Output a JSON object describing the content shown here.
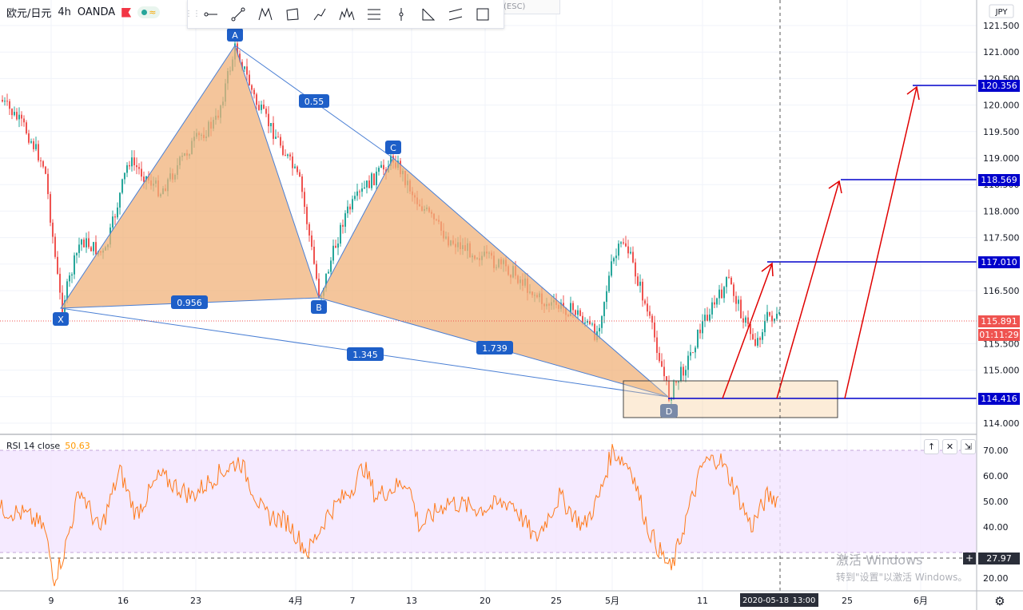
{
  "symbol": {
    "name": "欧元/日元",
    "interval": "4h",
    "source": "OANDA"
  },
  "toolbar": {
    "esc_hint": "(ESC)",
    "icons": [
      "horizontal-ray-icon",
      "trend-line-icon",
      "xabcd-pattern-icon",
      "rectangle-icon",
      "path-icon",
      "elliott-wave-icon",
      "fib-retracement-icon",
      "vertical-line-icon",
      "triangle-pattern-icon",
      "parallel-channel-icon",
      "polygon-icon"
    ]
  },
  "price_axis": {
    "currency": "JPY",
    "ticks": [
      "121.500",
      "121.000",
      "120.500",
      "120.000",
      "119.500",
      "119.000",
      "118.500",
      "118.000",
      "117.500",
      "117.000",
      "116.500",
      "116.000",
      "115.500",
      "115.000",
      "114.500",
      "114.000"
    ]
  },
  "price_labels": {
    "target_3": "120.356",
    "target_2": "118.569",
    "target_1": "117.010",
    "last_price": "115.891",
    "countdown": "01:11:29",
    "entry": "114.416"
  },
  "harmonic_pattern": {
    "points": [
      "X",
      "A",
      "B",
      "C",
      "D"
    ],
    "ratios": {
      "xb": "0.956",
      "ac": "0.55",
      "bd": "1.739",
      "xd": "1.345"
    }
  },
  "rsi": {
    "label": "RSI 14 close",
    "value": "50.63",
    "ticks": [
      "70.00",
      "60.00",
      "50.00",
      "40.00",
      "20.00"
    ],
    "crosshair_value": "27.97",
    "pane_buttons": [
      "↑",
      "✕",
      "⇲"
    ]
  },
  "time_axis": {
    "ticks": [
      "9",
      "16",
      "23",
      "4月",
      "7",
      "13",
      "20",
      "25",
      "5月",
      "11",
      "25",
      "6月"
    ],
    "crosshair_date": "2020-05-18",
    "crosshair_time": "13:00"
  },
  "watermark": {
    "line1": "激活 Windows",
    "line2": "转到\"设置\"以激活 Windows。"
  },
  "colors": {
    "up": "#26a69a",
    "down": "#ef5350",
    "pattern_fill": "#f0b27a",
    "pattern_line": "#4a7fd4",
    "target_line": "#0000cc",
    "arrow": "#e00000",
    "rsi_line": "#ff7a1a",
    "rsi_band": "#f3e5ff"
  }
}
